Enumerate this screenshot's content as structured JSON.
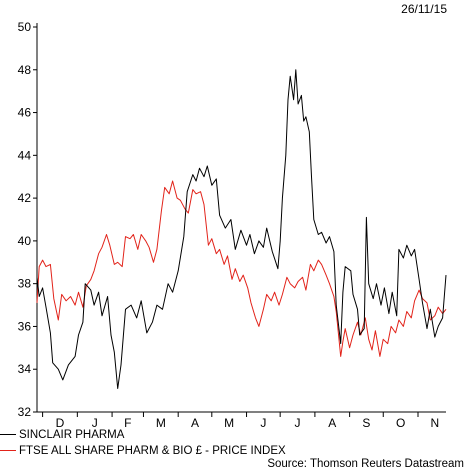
{
  "date_label": "26/11/15",
  "source": "Source: Thomson Reuters Datastream",
  "colors": {
    "sinclair": "#000000",
    "ftse": "#e2231a",
    "axis": "#000000"
  },
  "chart_data": {
    "type": "line",
    "title": "",
    "xlabel": "",
    "ylabel": "",
    "ylim": [
      32,
      50
    ],
    "yticks": [
      32,
      34,
      36,
      38,
      40,
      42,
      44,
      46,
      48,
      50
    ],
    "xlim": [
      "2014-11-26",
      "2015-11-26"
    ],
    "x_month_labels": [
      "D",
      "J",
      "F",
      "M",
      "A",
      "M",
      "J",
      "J",
      "A",
      "S",
      "O",
      "N"
    ],
    "grid": false,
    "legend_position": "bottom-left",
    "series": [
      {
        "name": "SINCLAIR PHARMA",
        "color": "#000000",
        "points": [
          [
            "2014-11-26",
            38.3
          ],
          [
            "2014-11-28",
            37.4
          ],
          [
            "2014-12-01",
            37.8
          ],
          [
            "2014-12-04",
            36.9
          ],
          [
            "2014-12-08",
            35.7
          ],
          [
            "2014-12-10",
            34.3
          ],
          [
            "2014-12-15",
            34.0
          ],
          [
            "2014-12-19",
            33.5
          ],
          [
            "2014-12-24",
            34.2
          ],
          [
            "2014-12-30",
            34.6
          ],
          [
            "2015-01-02",
            35.6
          ],
          [
            "2015-01-06",
            36.2
          ],
          [
            "2015-01-08",
            38.0
          ],
          [
            "2015-01-13",
            37.7
          ],
          [
            "2015-01-16",
            37.0
          ],
          [
            "2015-01-20",
            37.6
          ],
          [
            "2015-01-23",
            36.5
          ],
          [
            "2015-01-28",
            37.4
          ],
          [
            "2015-01-31",
            35.6
          ],
          [
            "2015-02-03",
            34.8
          ],
          [
            "2015-02-06",
            33.1
          ],
          [
            "2015-02-09",
            34.2
          ],
          [
            "2015-02-13",
            36.8
          ],
          [
            "2015-02-18",
            37.0
          ],
          [
            "2015-02-23",
            36.4
          ],
          [
            "2015-02-27",
            37.2
          ],
          [
            "2015-03-04",
            35.7
          ],
          [
            "2015-03-09",
            36.2
          ],
          [
            "2015-03-13",
            37.0
          ],
          [
            "2015-03-18",
            36.8
          ],
          [
            "2015-03-23",
            38.0
          ],
          [
            "2015-03-27",
            37.6
          ],
          [
            "2015-04-01",
            38.6
          ],
          [
            "2015-04-06",
            40.2
          ],
          [
            "2015-04-09",
            42.3
          ],
          [
            "2015-04-14",
            43.1
          ],
          [
            "2015-04-17",
            42.8
          ],
          [
            "2015-04-20",
            43.4
          ],
          [
            "2015-04-24",
            43.0
          ],
          [
            "2015-04-27",
            43.5
          ],
          [
            "2015-05-01",
            42.6
          ],
          [
            "2015-05-05",
            42.9
          ],
          [
            "2015-05-08",
            41.2
          ],
          [
            "2015-05-13",
            40.6
          ],
          [
            "2015-05-18",
            41.0
          ],
          [
            "2015-05-22",
            39.6
          ],
          [
            "2015-05-27",
            40.5
          ],
          [
            "2015-06-01",
            39.8
          ],
          [
            "2015-06-04",
            40.3
          ],
          [
            "2015-06-08",
            39.4
          ],
          [
            "2015-06-12",
            40.0
          ],
          [
            "2015-06-16",
            39.7
          ],
          [
            "2015-06-19",
            40.6
          ],
          [
            "2015-06-24",
            39.5
          ],
          [
            "2015-06-29",
            38.7
          ],
          [
            "2015-07-01",
            40.0
          ],
          [
            "2015-07-03",
            42.0
          ],
          [
            "2015-07-06",
            44.0
          ],
          [
            "2015-07-08",
            46.6
          ],
          [
            "2015-07-10",
            47.7
          ],
          [
            "2015-07-13",
            46.6
          ],
          [
            "2015-07-15",
            48.0
          ],
          [
            "2015-07-17",
            46.4
          ],
          [
            "2015-07-20",
            46.8
          ],
          [
            "2015-07-22",
            45.6
          ],
          [
            "2015-07-24",
            45.8
          ],
          [
            "2015-07-27",
            45.1
          ],
          [
            "2015-07-29",
            43.0
          ],
          [
            "2015-07-31",
            41.0
          ],
          [
            "2015-08-04",
            40.3
          ],
          [
            "2015-08-07",
            40.4
          ],
          [
            "2015-08-11",
            39.9
          ],
          [
            "2015-08-14",
            40.2
          ],
          [
            "2015-08-18",
            39.5
          ],
          [
            "2015-08-20",
            37.0
          ],
          [
            "2015-08-24",
            35.2
          ],
          [
            "2015-08-26",
            37.6
          ],
          [
            "2015-08-28",
            38.8
          ],
          [
            "2015-09-02",
            38.6
          ],
          [
            "2015-09-04",
            37.5
          ],
          [
            "2015-09-08",
            36.8
          ],
          [
            "2015-09-10",
            35.6
          ],
          [
            "2015-09-14",
            35.9
          ],
          [
            "2015-09-16",
            41.1
          ],
          [
            "2015-09-18",
            38.0
          ],
          [
            "2015-09-22",
            37.3
          ],
          [
            "2015-09-25",
            38.0
          ],
          [
            "2015-09-29",
            37.0
          ],
          [
            "2015-10-02",
            37.8
          ],
          [
            "2015-10-06",
            36.6
          ],
          [
            "2015-10-09",
            37.6
          ],
          [
            "2015-10-13",
            36.5
          ],
          [
            "2015-10-15",
            39.6
          ],
          [
            "2015-10-19",
            39.2
          ],
          [
            "2015-10-22",
            39.8
          ],
          [
            "2015-10-26",
            39.3
          ],
          [
            "2015-10-29",
            39.6
          ],
          [
            "2015-11-02",
            38.2
          ],
          [
            "2015-11-05",
            37.1
          ],
          [
            "2015-11-09",
            35.9
          ],
          [
            "2015-11-12",
            36.8
          ],
          [
            "2015-11-16",
            35.5
          ],
          [
            "2015-11-19",
            36.0
          ],
          [
            "2015-11-23",
            36.4
          ],
          [
            "2015-11-26",
            38.4
          ]
        ]
      },
      {
        "name": "FTSE ALL SHARE PHARM & BIO £ - PRICE INDEX",
        "color": "#e2231a",
        "points": [
          [
            "2014-11-26",
            37.1
          ],
          [
            "2014-11-28",
            38.8
          ],
          [
            "2014-12-01",
            39.1
          ],
          [
            "2014-12-04",
            38.8
          ],
          [
            "2014-12-08",
            38.9
          ],
          [
            "2014-12-11",
            37.3
          ],
          [
            "2014-12-15",
            36.3
          ],
          [
            "2014-12-18",
            37.5
          ],
          [
            "2014-12-22",
            37.2
          ],
          [
            "2014-12-26",
            37.4
          ],
          [
            "2014-12-30",
            37.0
          ],
          [
            "2015-01-02",
            37.6
          ],
          [
            "2015-01-06",
            36.9
          ],
          [
            "2015-01-09",
            37.9
          ],
          [
            "2015-01-13",
            38.2
          ],
          [
            "2015-01-16",
            38.6
          ],
          [
            "2015-01-20",
            39.4
          ],
          [
            "2015-01-23",
            39.7
          ],
          [
            "2015-01-27",
            40.3
          ],
          [
            "2015-01-30",
            39.8
          ],
          [
            "2015-02-03",
            38.9
          ],
          [
            "2015-02-06",
            39.0
          ],
          [
            "2015-02-10",
            38.8
          ],
          [
            "2015-02-13",
            40.2
          ],
          [
            "2015-02-17",
            40.1
          ],
          [
            "2015-02-20",
            40.3
          ],
          [
            "2015-02-24",
            39.6
          ],
          [
            "2015-02-27",
            40.3
          ],
          [
            "2015-03-03",
            40.0
          ],
          [
            "2015-03-06",
            39.7
          ],
          [
            "2015-03-10",
            39.0
          ],
          [
            "2015-03-13",
            39.6
          ],
          [
            "2015-03-17",
            41.4
          ],
          [
            "2015-03-20",
            42.5
          ],
          [
            "2015-03-24",
            42.2
          ],
          [
            "2015-03-27",
            42.8
          ],
          [
            "2015-03-31",
            42.0
          ],
          [
            "2015-04-03",
            41.9
          ],
          [
            "2015-04-07",
            41.5
          ],
          [
            "2015-04-10",
            41.3
          ],
          [
            "2015-04-14",
            42.4
          ],
          [
            "2015-04-17",
            42.2
          ],
          [
            "2015-04-21",
            42.3
          ],
          [
            "2015-04-24",
            41.7
          ],
          [
            "2015-04-28",
            39.8
          ],
          [
            "2015-05-01",
            40.1
          ],
          [
            "2015-05-05",
            39.4
          ],
          [
            "2015-05-08",
            39.6
          ],
          [
            "2015-05-12",
            38.9
          ],
          [
            "2015-05-15",
            39.3
          ],
          [
            "2015-05-19",
            38.2
          ],
          [
            "2015-05-22",
            38.7
          ],
          [
            "2015-05-26",
            38.1
          ],
          [
            "2015-05-29",
            38.4
          ],
          [
            "2015-06-02",
            37.8
          ],
          [
            "2015-06-05",
            37.1
          ],
          [
            "2015-06-09",
            36.4
          ],
          [
            "2015-06-12",
            36.0
          ],
          [
            "2015-06-16",
            36.8
          ],
          [
            "2015-06-19",
            37.5
          ],
          [
            "2015-06-23",
            37.2
          ],
          [
            "2015-06-26",
            37.6
          ],
          [
            "2015-06-30",
            37.0
          ],
          [
            "2015-07-03",
            37.5
          ],
          [
            "2015-07-07",
            38.3
          ],
          [
            "2015-07-10",
            38.0
          ],
          [
            "2015-07-14",
            37.8
          ],
          [
            "2015-07-17",
            38.1
          ],
          [
            "2015-07-21",
            38.3
          ],
          [
            "2015-07-24",
            37.7
          ],
          [
            "2015-07-28",
            38.9
          ],
          [
            "2015-07-31",
            38.6
          ],
          [
            "2015-08-04",
            39.1
          ],
          [
            "2015-08-07",
            38.9
          ],
          [
            "2015-08-11",
            38.4
          ],
          [
            "2015-08-14",
            38.0
          ],
          [
            "2015-08-18",
            37.4
          ],
          [
            "2015-08-20",
            36.7
          ],
          [
            "2015-08-24",
            34.6
          ],
          [
            "2015-08-26",
            35.3
          ],
          [
            "2015-08-28",
            35.9
          ],
          [
            "2015-09-01",
            35.0
          ],
          [
            "2015-09-04",
            35.6
          ],
          [
            "2015-09-08",
            36.2
          ],
          [
            "2015-09-11",
            35.6
          ],
          [
            "2015-09-15",
            36.4
          ],
          [
            "2015-09-18",
            35.4
          ],
          [
            "2015-09-21",
            34.9
          ],
          [
            "2015-09-24",
            35.8
          ],
          [
            "2015-09-28",
            34.6
          ],
          [
            "2015-10-01",
            35.4
          ],
          [
            "2015-10-05",
            35.2
          ],
          [
            "2015-10-08",
            36.0
          ],
          [
            "2015-10-12",
            35.7
          ],
          [
            "2015-10-15",
            36.3
          ],
          [
            "2015-10-19",
            36.0
          ],
          [
            "2015-10-22",
            36.7
          ],
          [
            "2015-10-26",
            36.4
          ],
          [
            "2015-10-29",
            37.2
          ],
          [
            "2015-11-02",
            37.7
          ],
          [
            "2015-11-05",
            37.3
          ],
          [
            "2015-11-09",
            37.1
          ],
          [
            "2015-11-12",
            36.3
          ],
          [
            "2015-11-16",
            36.5
          ],
          [
            "2015-11-19",
            36.9
          ],
          [
            "2015-11-23",
            36.6
          ],
          [
            "2015-11-26",
            36.8
          ]
        ]
      }
    ]
  }
}
